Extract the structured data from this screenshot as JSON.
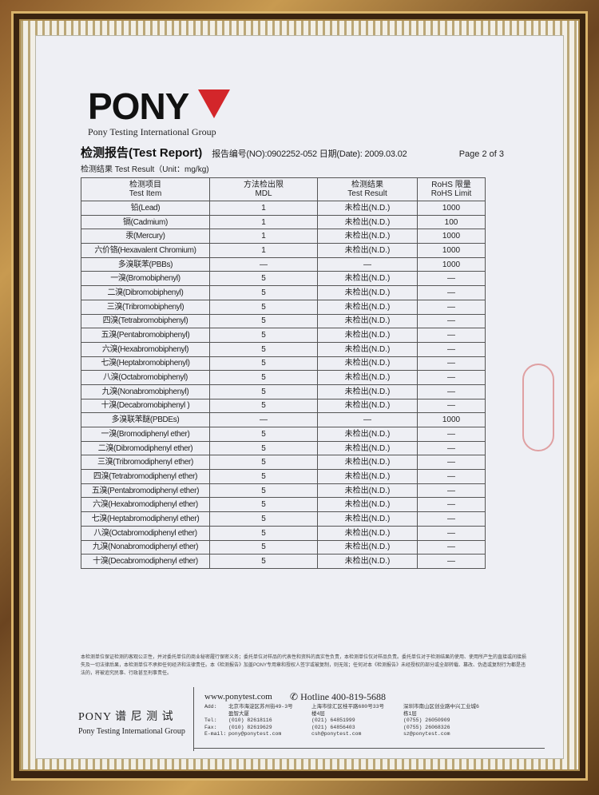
{
  "logo": {
    "brand": "PONY",
    "group": "Pony Testing International Group"
  },
  "header": {
    "title": "检测报告(Test Report)",
    "report_no": "报告编号(NO):0902252-052 日期(Date): 2009.03.02",
    "page": "Page 2 of 3",
    "unit": "检测结果 Test Result（Unit：mg/kg)"
  },
  "table": {
    "headers": [
      [
        "检测项目",
        "Test Item"
      ],
      [
        "方法检出限",
        "MDL"
      ],
      [
        "检测结果",
        "Test Result"
      ],
      [
        "RoHS 限量",
        "RoHS Limit"
      ]
    ],
    "rows": [
      [
        "铅(Lead)",
        "1",
        "未检出(N.D.)",
        "1000"
      ],
      [
        "镉(Cadmium)",
        "1",
        "未检出(N.D.)",
        "100"
      ],
      [
        "汞(Mercury)",
        "1",
        "未检出(N.D.)",
        "1000"
      ],
      [
        "六价铬(Hexavalent Chromium)",
        "1",
        "未检出(N.D.)",
        "1000"
      ],
      [
        "多溴联苯(PBBs)",
        "—",
        "—",
        "1000"
      ],
      [
        "一溴(Bromobiphenyl)",
        "5",
        "未检出(N.D.)",
        "—"
      ],
      [
        "二溴(Dibromobiphenyl)",
        "5",
        "未检出(N.D.)",
        "—"
      ],
      [
        "三溴(Tribromobiphenyl)",
        "5",
        "未检出(N.D.)",
        "—"
      ],
      [
        "四溴(Tetrabromobiphenyl)",
        "5",
        "未检出(N.D.)",
        "—"
      ],
      [
        "五溴(Pentabromobiphenyl)",
        "5",
        "未检出(N.D.)",
        "—"
      ],
      [
        "六溴(Hexabromobiphenyl)",
        "5",
        "未检出(N.D.)",
        "—"
      ],
      [
        "七溴(Heptabromobiphenyl)",
        "5",
        "未检出(N.D.)",
        "—"
      ],
      [
        "八溴(Octabromobiphenyl)",
        "5",
        "未检出(N.D.)",
        "—"
      ],
      [
        "九溴(Nonabromobiphenyl)",
        "5",
        "未检出(N.D.)",
        "—"
      ],
      [
        "十溴(Decabromobiphenyl )",
        "5",
        "未检出(N.D.)",
        "—"
      ],
      [
        "多溴联苯醚(PBDEs)",
        "—",
        "—",
        "1000"
      ],
      [
        "一溴(Bromodiphenyl ether)",
        "5",
        "未检出(N.D.)",
        "—"
      ],
      [
        "二溴(Dibromodiphenyl ether)",
        "5",
        "未检出(N.D.)",
        "—"
      ],
      [
        "三溴(Tribromodiphenyl ether)",
        "5",
        "未检出(N.D.)",
        "—"
      ],
      [
        "四溴(Tetrabromodiphenyl ether)",
        "5",
        "未检出(N.D.)",
        "—"
      ],
      [
        "五溴(Pentabromodiphenyl ether)",
        "5",
        "未检出(N.D.)",
        "—"
      ],
      [
        "六溴(Hexabromodiphenyl ether)",
        "5",
        "未检出(N.D.)",
        "—"
      ],
      [
        "七溴(Heptabromodiphenyl ether)",
        "5",
        "未检出(N.D.)",
        "—"
      ],
      [
        "八溴(Octabromodiphenyl ether)",
        "5",
        "未检出(N.D.)",
        "—"
      ],
      [
        "九溴(Nonabromodiphenyl ether)",
        "5",
        "未检出(N.D.)",
        "—"
      ],
      [
        "十溴(Decabromodiphenyl ether)",
        "5",
        "未检出(N.D.)",
        "—"
      ]
    ]
  },
  "disclaimer": "本检测单位保证检测的客观公正性，并对委托单位的商业秘密履行保密义务；委托单位对样品的代表性和资料的真实性负责，本检测单位仅对样品负责。委托单位对于检测结果的使用、使用所产生的直接或间接损失及一切法律后果，本检测单位不承担任何经济和法律责任。本《检测报告》加盖PONY专用章和授权人签字或被复制，则无效；任何对本《检测报告》未经授权的部分或全部转载、篡改、伪造或复制行为都是违法的，将被追究民事、行政甚至刑事责任。",
  "footer": {
    "brand": "PONY 谱 尼 测 试",
    "group": "Pony Testing International Group",
    "website": "www.ponytest.com",
    "hotline": "Hotline 400-819-5688",
    "labels": "Add:\n\nTel:\nFax:\nE-mail:",
    "offices": [
      "北京市海淀区苏州街49-3号\n盈智大厦\n(010) 82618116\n(010) 82619629\npony@ponytest.com",
      "上海市徐汇区桂平路680号33号\n楼4层\n(021) 64851999\n(021) 64856403\ncsh@ponytest.com",
      "深圳市南山区创业路中兴工业城6\n栋1层\n(0755) 26050909\n(0755) 26068326\nsz@ponytest.com"
    ]
  },
  "colors": {
    "logo_red": "#d3262a",
    "paper": "#eeeff4",
    "frame_gold": "#c89a50"
  }
}
